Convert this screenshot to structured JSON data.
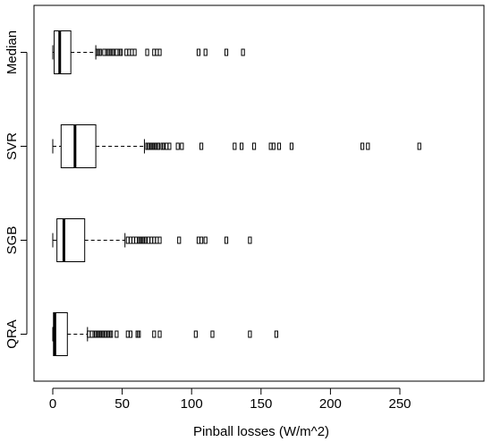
{
  "chart_data": {
    "type": "boxplot",
    "orientation": "horizontal",
    "title": "",
    "xlabel": "Pinball losses (W/m^2)",
    "ylabel": "",
    "xlim": [
      -6,
      276
    ],
    "xticks": [
      0,
      50,
      100,
      150,
      200,
      250
    ],
    "grid": false,
    "legend": "none",
    "categories": [
      "QRA",
      "SGB",
      "SVR",
      "Median"
    ],
    "boxes": [
      {
        "name": "QRA",
        "whisker_low": 0,
        "q1": 0.5,
        "median": 1.5,
        "q3": 10.5,
        "whisker_high": 25,
        "outliers": [
          26,
          28,
          30,
          31,
          32,
          33,
          34,
          35,
          36,
          37,
          38,
          39,
          40,
          41,
          42,
          46,
          54,
          56,
          61,
          62,
          73,
          77,
          103,
          115,
          142,
          161
        ]
      },
      {
        "name": "SGB",
        "whisker_low": 0,
        "q1": 3,
        "median": 8,
        "q3": 23,
        "whisker_high": 52,
        "outliers": [
          54,
          56,
          58,
          60,
          62,
          63,
          64,
          65,
          66,
          67,
          69,
          71,
          73,
          75,
          77,
          91,
          105,
          107,
          110,
          125,
          142
        ]
      },
      {
        "name": "SVR",
        "whisker_low": 0,
        "q1": 6,
        "median": 16,
        "q3": 31,
        "whisker_high": 66,
        "outliers": [
          68,
          69,
          70,
          71,
          72,
          73,
          74,
          75,
          76,
          79,
          80,
          82,
          84,
          90,
          93,
          107,
          131,
          136,
          145,
          157,
          159,
          163,
          172,
          223,
          227,
          264
        ]
      },
      {
        "name": "Median",
        "whisker_low": 0,
        "q1": 1,
        "median": 5,
        "q3": 13,
        "whisker_high": 31,
        "outliers": [
          32,
          33,
          34,
          37,
          39,
          40,
          41,
          43,
          44,
          46,
          48,
          49,
          53,
          55,
          57,
          59,
          68,
          73,
          75,
          77,
          105,
          110,
          125,
          137
        ]
      }
    ]
  }
}
